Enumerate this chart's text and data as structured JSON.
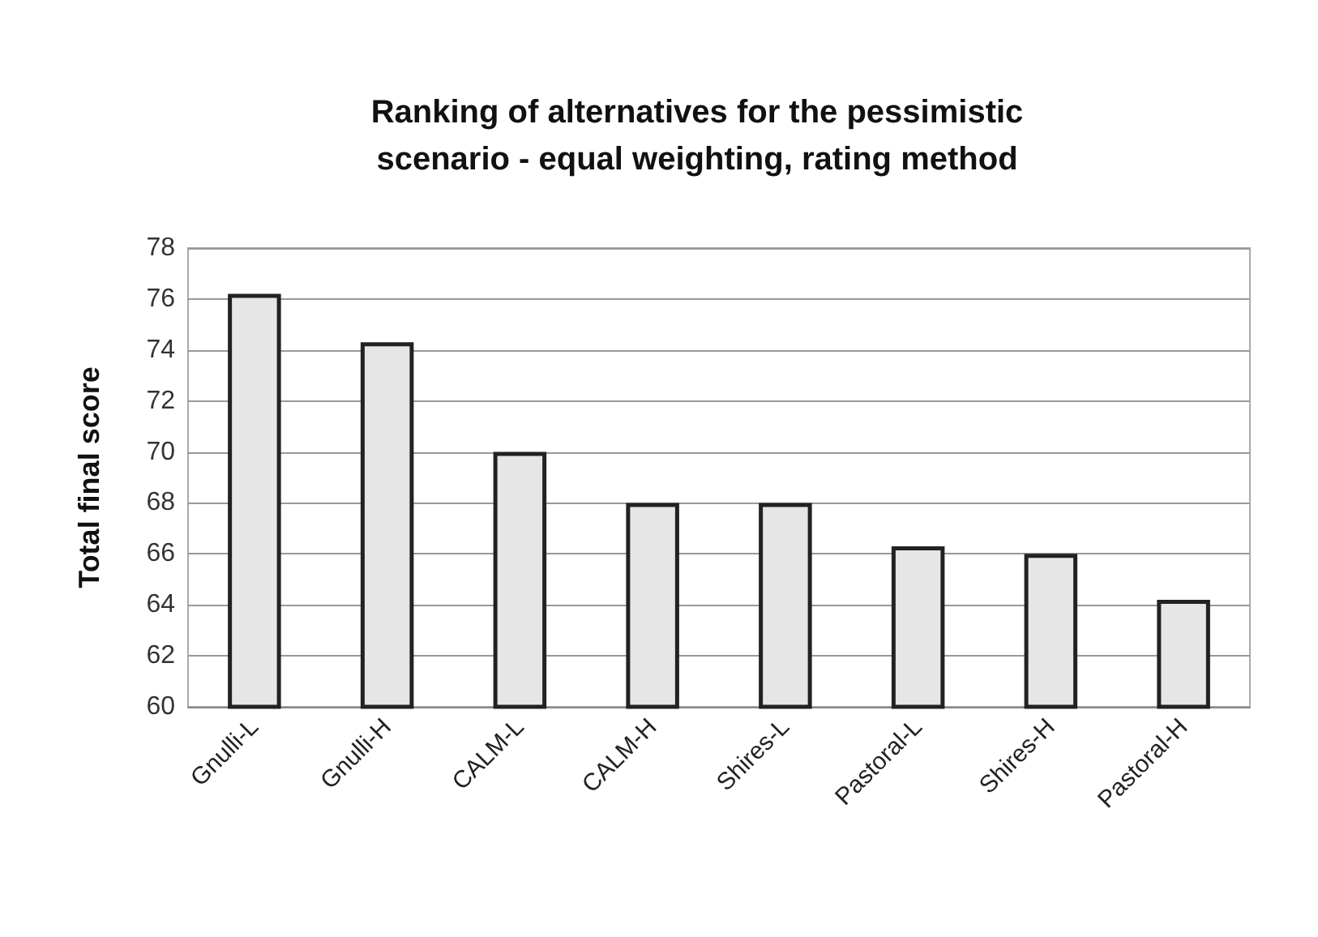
{
  "chart_data": {
    "type": "bar",
    "title": "Ranking of alternatives for the pessimistic\nscenario - equal weighting, rating method",
    "ylabel": "Total final score",
    "categories": [
      "Gnulli-L",
      "Gnulli-H",
      "CALM-L",
      "CALM-H",
      "Shires-L",
      "Pastoral-L",
      "Shires-H",
      "Pastoral-H"
    ],
    "values": [
      76.2,
      74.3,
      70.0,
      68.0,
      68.0,
      66.3,
      66.0,
      64.2
    ],
    "color": "#e6e6e6",
    "ylim": [
      60,
      78
    ],
    "yticks": [
      60,
      62,
      64,
      66,
      68,
      70,
      72,
      74,
      76,
      78
    ],
    "grid": "y"
  }
}
